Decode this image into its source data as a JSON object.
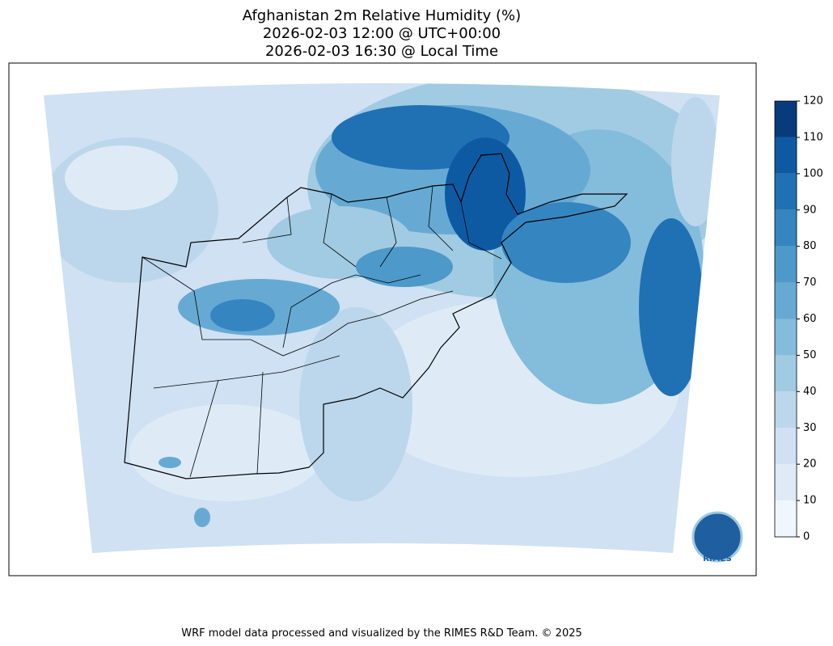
{
  "header": {
    "title": [
      "Afghanistan 2m Relative Humidity (%)",
      "2026-02-03 12:00 @ UTC+00:00",
      "2026-02-03 16:30 @ Local Time"
    ]
  },
  "colorbar": {
    "lim": [
      0,
      120
    ],
    "ticks": [
      0,
      10,
      20,
      30,
      40,
      50,
      60,
      70,
      80,
      90,
      100,
      110,
      120
    ],
    "colors": [
      "#eff6fd",
      "#deebf7",
      "#cfe1f2",
      "#bcd7ec",
      "#a0cbe2",
      "#84bcdb",
      "#66aad4",
      "#4d99ca",
      "#3585c0",
      "#2070b4",
      "#0d5aa3",
      "#083b7c"
    ]
  },
  "logo": {
    "label": "RIMES"
  },
  "footer": "WRF model data processed and visualized by the RIMES R&D Team. © 2025"
}
